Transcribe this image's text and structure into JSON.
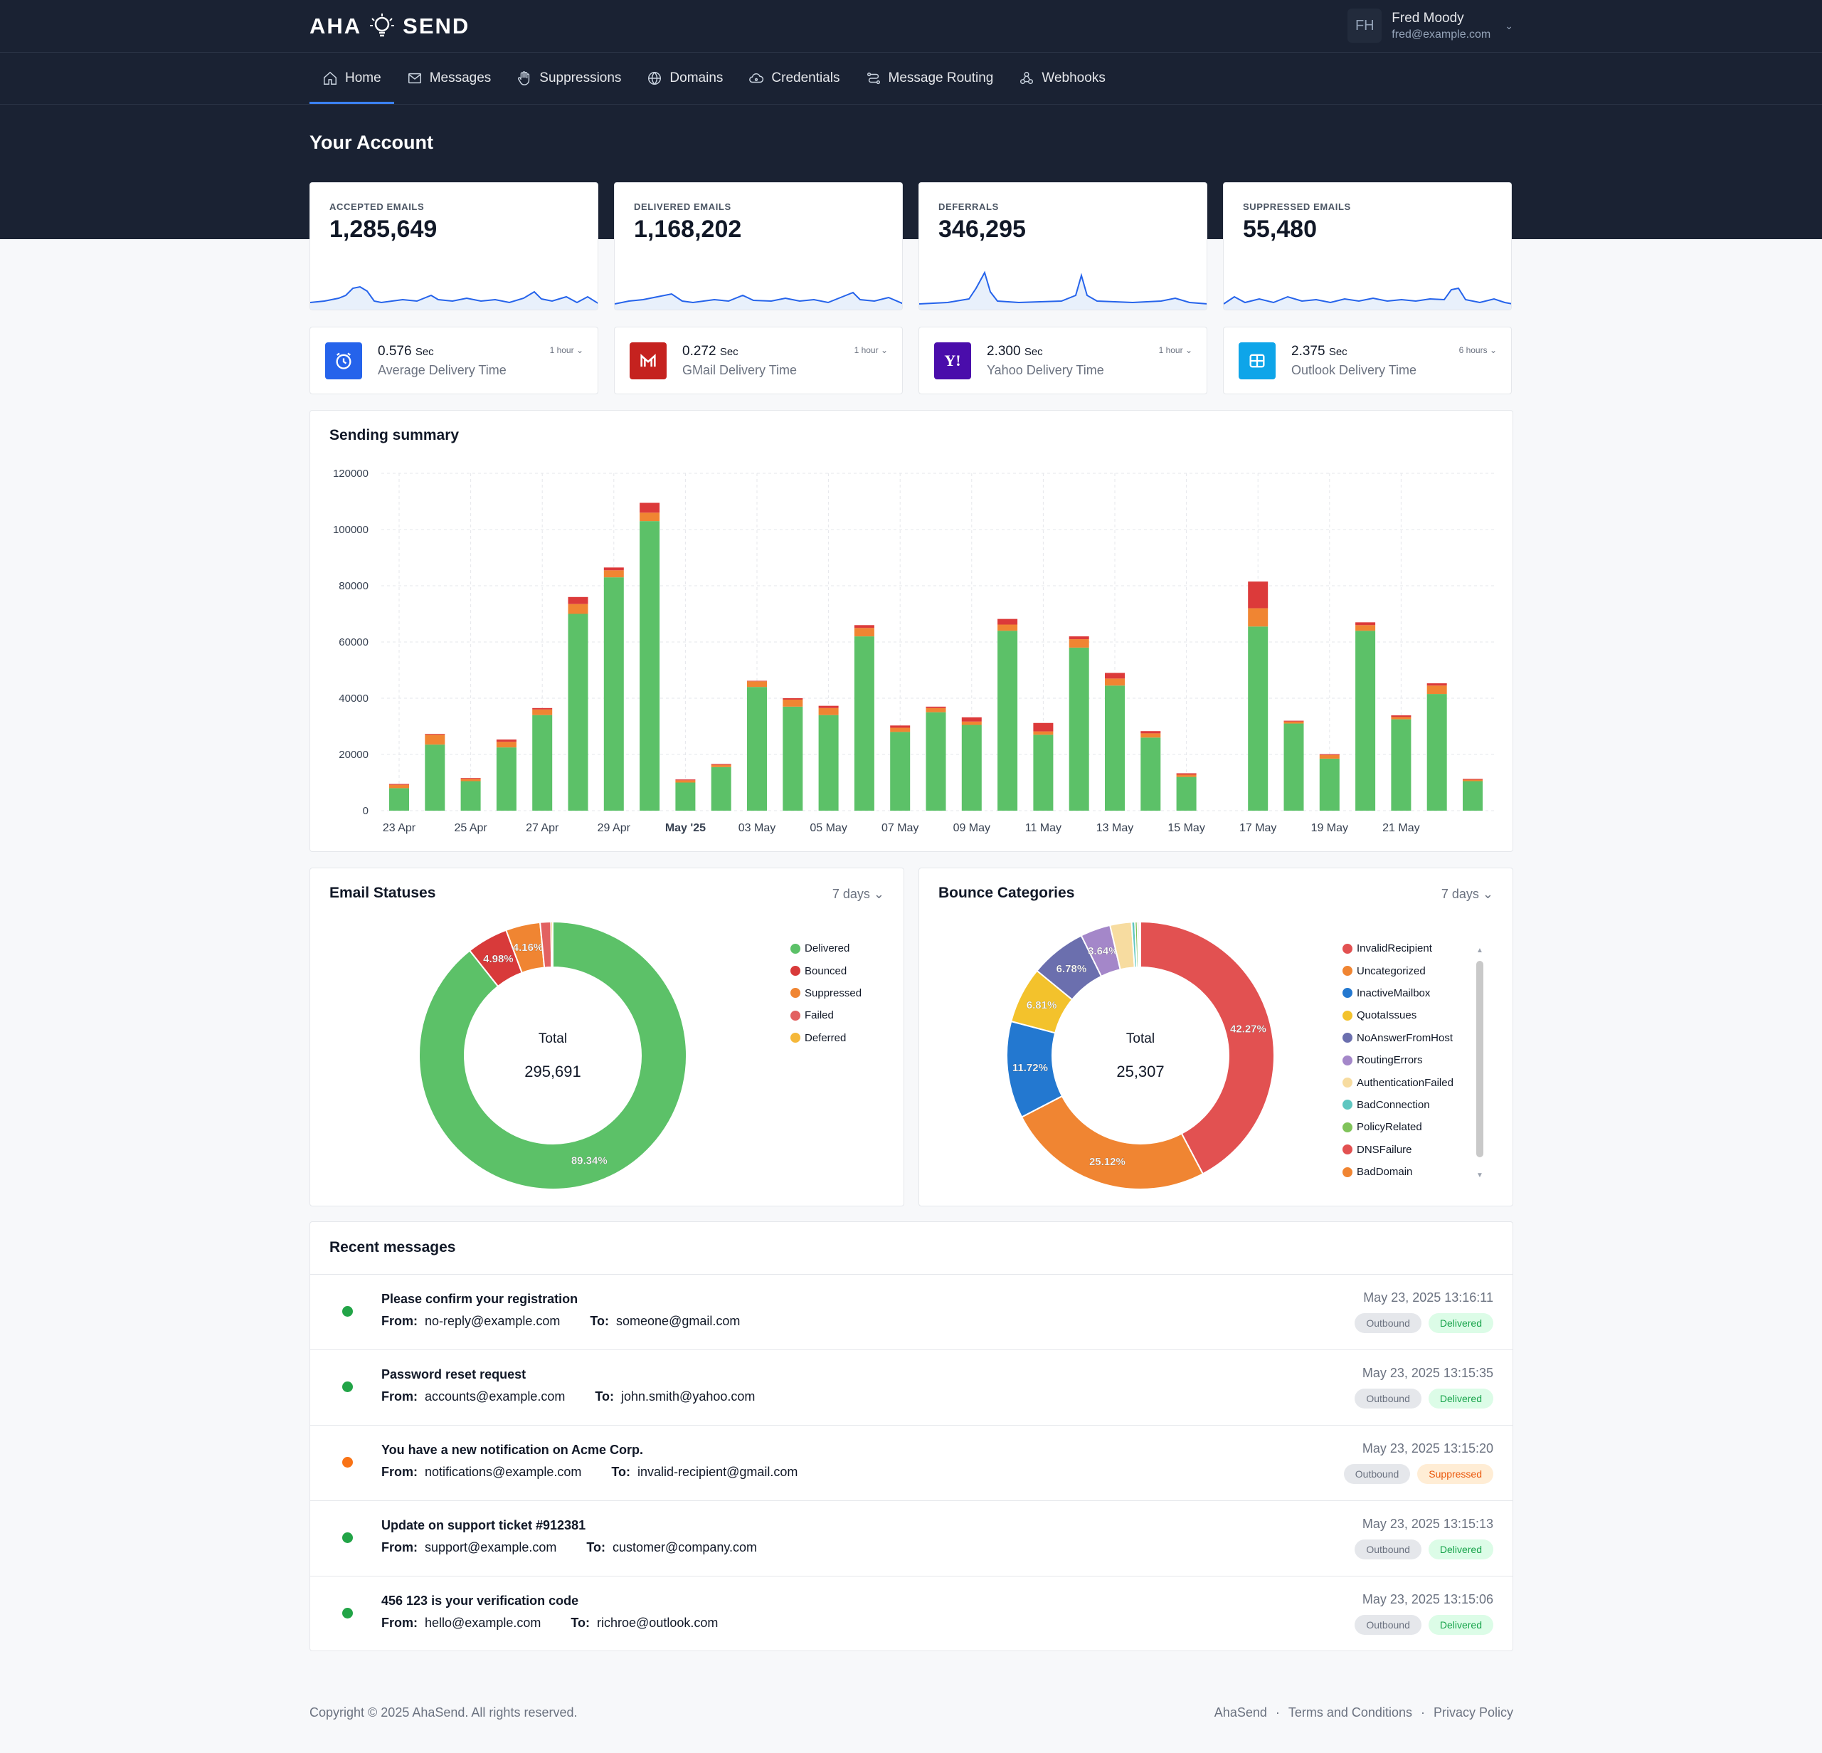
{
  "header": {
    "logo_left": "AHA",
    "logo_right": "SEND",
    "user": {
      "initials": "FH",
      "name": "Fred Moody",
      "email": "fred@example.com"
    }
  },
  "nav": {
    "items": [
      {
        "label": "Home",
        "icon": "home-icon"
      },
      {
        "label": "Messages",
        "icon": "mail-icon"
      },
      {
        "label": "Suppressions",
        "icon": "hand-icon"
      },
      {
        "label": "Domains",
        "icon": "globe-icon"
      },
      {
        "label": "Credentials",
        "icon": "cloud-icon"
      },
      {
        "label": "Message Routing",
        "icon": "route-icon"
      },
      {
        "label": "Webhooks",
        "icon": "webhook-icon"
      }
    ]
  },
  "page_title": "Your Account",
  "stats": [
    {
      "label": "ACCEPTED EMAILS",
      "value": "1,285,649"
    },
    {
      "label": "DELIVERED EMAILS",
      "value": "1,168,202"
    },
    {
      "label": "DEFERRALS",
      "value": "346,295"
    },
    {
      "label": "SUPPRESSED EMAILS",
      "value": "55,480"
    }
  ],
  "delivery_times": [
    {
      "value": "0.576",
      "unit": "Sec",
      "label": "Average Delivery Time",
      "period": "1 hour",
      "icon": "clock-icon",
      "color": "#2563eb"
    },
    {
      "value": "0.272",
      "unit": "Sec",
      "label": "GMail Delivery Time",
      "period": "1 hour",
      "icon": "gmail-icon",
      "color": "#c5221f"
    },
    {
      "value": "2.300",
      "unit": "Sec",
      "label": "Yahoo Delivery Time",
      "period": "1 hour",
      "icon": "yahoo-icon",
      "color": "#4a0dab"
    },
    {
      "value": "2.375",
      "unit": "Sec",
      "label": "Outlook Delivery Time",
      "period": "6 hours",
      "icon": "outlook-icon",
      "color": "#0ea5e9"
    }
  ],
  "sending_summary": {
    "title": "Sending summary",
    "chart_data": {
      "type": "bar",
      "stacked": true,
      "ylim": [
        0,
        120000
      ],
      "yticks": [
        "0",
        "20000",
        "40000",
        "60000",
        "80000",
        "100000",
        "120000"
      ],
      "xtick_labels": [
        "23 Apr",
        "25 Apr",
        "27 Apr",
        "29 Apr",
        "May '25",
        "03 May",
        "05 May",
        "07 May",
        "09 May",
        "11 May",
        "13 May",
        "15 May",
        "17 May",
        "19 May",
        "21 May"
      ],
      "categories": [
        "23 Apr",
        "24 Apr",
        "25 Apr",
        "26 Apr",
        "27 Apr",
        "28 Apr",
        "29 Apr",
        "30 Apr",
        "01 May",
        "02 May",
        "03 May",
        "04 May",
        "05 May",
        "06 May",
        "07 May",
        "08 May",
        "09 May",
        "10 May",
        "11 May",
        "12 May",
        "13 May",
        "14 May",
        "15 May",
        "16 May",
        "17 May",
        "18 May",
        "19 May",
        "20 May",
        "21 May",
        "22 May",
        "23 May"
      ],
      "series": [
        {
          "color": "#5cc168",
          "values": [
            8000,
            23500,
            10500,
            22500,
            34000,
            70000,
            83000,
            103000,
            10000,
            15500,
            44000,
            37000,
            34000,
            62000,
            28000,
            35000,
            30500,
            64000,
            27000,
            58000,
            44500,
            26000,
            12000,
            0,
            65500,
            31000,
            18500,
            64000,
            32500,
            41500,
            10500
          ]
        },
        {
          "color": "#f08532",
          "values": [
            1200,
            3500,
            800,
            2000,
            2000,
            3500,
            2500,
            3000,
            800,
            800,
            2000,
            2500,
            2500,
            3000,
            1500,
            1500,
            1200,
            2200,
            1200,
            3000,
            2500,
            1500,
            800,
            0,
            6500,
            700,
            1300,
            2000,
            800,
            3000,
            500
          ]
        },
        {
          "color": "#dc3a3a",
          "values": [
            300,
            300,
            300,
            800,
            500,
            2500,
            1000,
            3500,
            300,
            300,
            200,
            500,
            800,
            1000,
            800,
            500,
            1500,
            2000,
            3000,
            1000,
            2000,
            800,
            500,
            0,
            9500,
            300,
            300,
            1000,
            600,
            800,
            300
          ]
        }
      ]
    }
  },
  "email_statuses": {
    "title": "Email Statuses",
    "period": "7 days",
    "total_label": "Total",
    "total_value": "295,691",
    "chart_data": {
      "type": "pie",
      "labels": [
        "Delivered",
        "Bounced",
        "Suppressed",
        "Failed",
        "Deferred"
      ],
      "values": [
        89.34,
        4.98,
        4.16,
        1.3,
        0.22
      ],
      "display_labels": [
        "89.34%",
        "4.98%",
        "4.16%",
        "",
        ""
      ],
      "colors": [
        "#5cc168",
        "#d83a3a",
        "#f08532",
        "#e26161",
        "#f5b83a"
      ]
    }
  },
  "bounce_categories": {
    "title": "Bounce Categories",
    "period": "7 days",
    "total_label": "Total",
    "total_value": "25,307",
    "chart_data": {
      "type": "pie",
      "labels": [
        "InvalidRecipient",
        "Uncategorized",
        "InactiveMailbox",
        "QuotaIssues",
        "NoAnswerFromHost",
        "RoutingErrors",
        "AuthenticationFailed",
        "BadConnection",
        "PolicyRelated",
        "DNSFailure",
        "BadDomain"
      ],
      "values": [
        42.27,
        25.12,
        11.72,
        6.81,
        6.78,
        3.64,
        2.6,
        0.4,
        0.3,
        0.2,
        0.16
      ],
      "display_labels": [
        "42.27%",
        "25.12%",
        "11.72%",
        "6.81%",
        "6.78%",
        "3.64%",
        "",
        "",
        "",
        "",
        ""
      ],
      "colors": [
        "#e25151",
        "#f08532",
        "#2378d0",
        "#f3c22c",
        "#6b6fae",
        "#a487c9",
        "#f7dca0",
        "#5ec6c0",
        "#80c35a",
        "#e25151",
        "#f08532"
      ]
    }
  },
  "recent": {
    "title": "Recent messages",
    "from_label": "From:",
    "to_label": "To:",
    "messages": [
      {
        "subject": "Please confirm your registration",
        "from": "no-reply@example.com",
        "to": "someone@gmail.com",
        "date": "May 23, 2025 13:16:11",
        "direction": "Outbound",
        "status": "Delivered",
        "dot": "#22a447"
      },
      {
        "subject": "Password reset request",
        "from": "accounts@example.com",
        "to": "john.smith@yahoo.com",
        "date": "May 23, 2025 13:15:35",
        "direction": "Outbound",
        "status": "Delivered",
        "dot": "#22a447"
      },
      {
        "subject": "You have a new notification on Acme Corp.",
        "from": "notifications@example.com",
        "to": "invalid-recipient@gmail.com",
        "date": "May 23, 2025 13:15:20",
        "direction": "Outbound",
        "status": "Suppressed",
        "dot": "#f97316"
      },
      {
        "subject": "Update on support ticket #912381",
        "from": "support@example.com",
        "to": "customer@company.com",
        "date": "May 23, 2025 13:15:13",
        "direction": "Outbound",
        "status": "Delivered",
        "dot": "#22a447"
      },
      {
        "subject": "456 123 is your verification code",
        "from": "hello@example.com",
        "to": "richroe@outlook.com",
        "date": "May 23, 2025 13:15:06",
        "direction": "Outbound",
        "status": "Delivered",
        "dot": "#22a447"
      }
    ]
  },
  "footer": {
    "copyright": "Copyright © 2025 AhaSend. All rights reserved.",
    "links": [
      "AhaSend",
      "Terms and Conditions",
      "Privacy Policy"
    ]
  }
}
